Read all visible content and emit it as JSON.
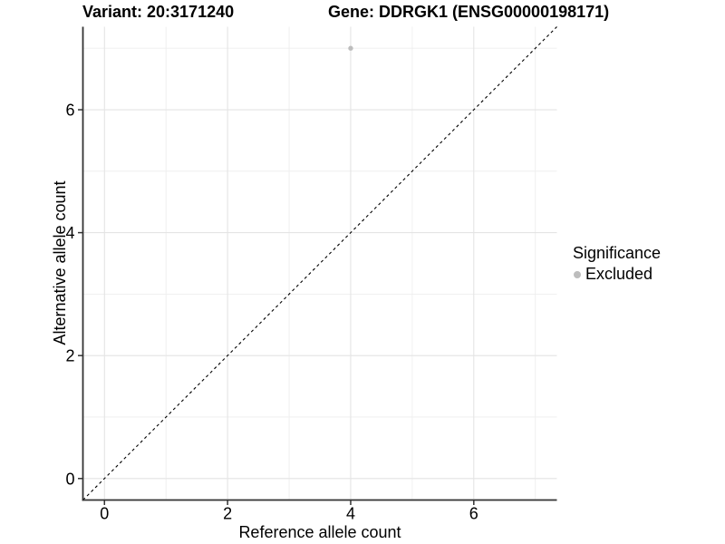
{
  "chart_data": {
    "type": "scatter",
    "title_left": "Variant: 20:3171240",
    "title_right": "Gene: DDRGK1 (ENSG00000198171)",
    "xlabel": "Reference allele count",
    "ylabel": "Alternative allele count",
    "xlim": [
      -0.35,
      7.35
    ],
    "ylim": [
      -0.35,
      7.35
    ],
    "x_major_ticks": [
      0,
      2,
      4,
      6
    ],
    "x_minor_ticks": [
      1,
      3,
      5,
      7
    ],
    "y_major_ticks": [
      0,
      2,
      4,
      6
    ],
    "y_minor_ticks": [
      1,
      3,
      5,
      7
    ],
    "grid": "major+minor",
    "reference_line": {
      "type": "identity",
      "slope": 1,
      "intercept": 0,
      "style": "dashed",
      "color": "#000000"
    },
    "series": [
      {
        "name": "Excluded",
        "color": "#bdbdbd",
        "points": [
          {
            "x": 4,
            "y": 7
          }
        ]
      }
    ],
    "legend": {
      "title": "Significance",
      "position": "right",
      "items": [
        {
          "label": "Excluded",
          "color": "#bdbdbd"
        }
      ]
    }
  },
  "colors": {
    "background": "#ffffff",
    "grid_major": "#e4e4e4",
    "grid_minor": "#eeeeee",
    "axis_line": "#333333",
    "tick_mark": "#333333",
    "text": "#000000",
    "point": "#bdbdbd"
  }
}
